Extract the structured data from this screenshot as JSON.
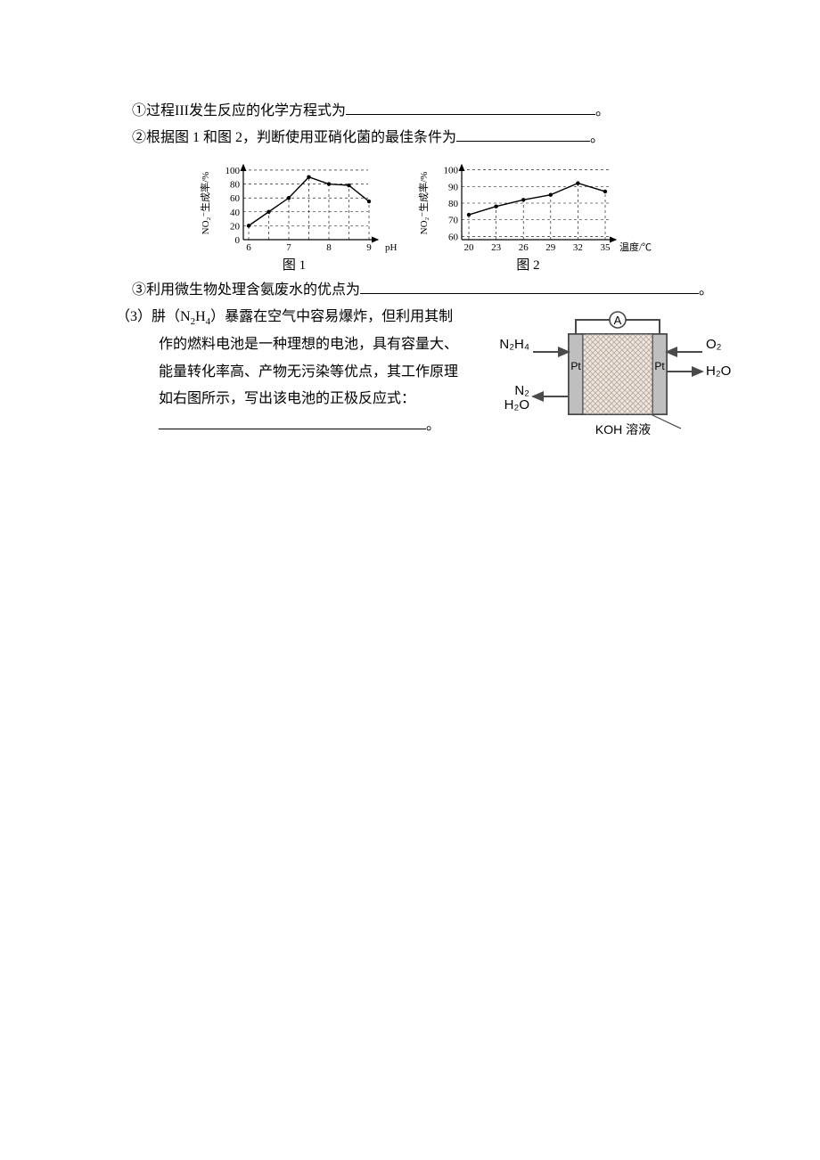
{
  "lines": {
    "q1": "①过程III发生反应的化学方程式为",
    "q1_end": "。",
    "q2": "②根据图 1 和图 2，判断使用亚硝化菌的最佳条件为",
    "q2_end": "。",
    "q3": "③利用微生物处理含氨废水的优点为",
    "q3_end": "。",
    "p3_lead": "（3）肼（N",
    "p3_lead_sub": "2",
    "p3_lead2": "H",
    "p3_lead_sub2": "4",
    "p3_lead3": "）暴露在空气中容易爆炸，但利用其制",
    "p3_l2": "作的燃料电池是一种理想的电池，具有容量大、",
    "p3_l3": "能量转化率高、产物无污染等优点，其工作原理",
    "p3_l4": "如右图所示，写出该电池的正极反应式：",
    "p3_end": "。"
  },
  "chart1": {
    "type": "line",
    "y_label": "NO₂⁻生成率/%",
    "y_ticks": [
      0,
      20,
      40,
      60,
      80,
      100
    ],
    "x_ticks": [
      6,
      7,
      8,
      9
    ],
    "x_unit": "pH",
    "caption": "图 1",
    "points_y": [
      20,
      40,
      60,
      90,
      80,
      78,
      55
    ],
    "ylim": [
      0,
      105
    ],
    "text_color": "#000000",
    "line_color": "#000000",
    "grid_color": "#000000",
    "background_color": "#ffffff",
    "font_size": 11
  },
  "chart2": {
    "type": "line",
    "y_label": "NO₂⁻生成率/%",
    "y_ticks": [
      60,
      70,
      80,
      90,
      100
    ],
    "x_ticks": [
      20,
      23,
      26,
      29,
      32,
      35
    ],
    "x_unit": "温度/℃",
    "caption": "图 2",
    "points_y": [
      73,
      78,
      82,
      85,
      92,
      87
    ],
    "ylim": [
      58,
      102
    ],
    "text_color": "#000000",
    "line_color": "#000000",
    "grid_color": "#000000",
    "background_color": "#ffffff",
    "font_size": 11
  },
  "fuelcell": {
    "left_top_in": "N₂H₄",
    "left_bot_out_1": "N₂",
    "left_bot_out_2": "H₂O",
    "right_top_in": "O₂",
    "right_mid_out": "H₂O",
    "top_label": "A",
    "electrode_label": "Pt",
    "electrolyte": "KOH 溶液",
    "body_fill": "#bfbfbf",
    "membrane_fill": "#efe6e0",
    "line_color": "#4a4a4a",
    "text_color": "#000000",
    "font_size": 15
  }
}
